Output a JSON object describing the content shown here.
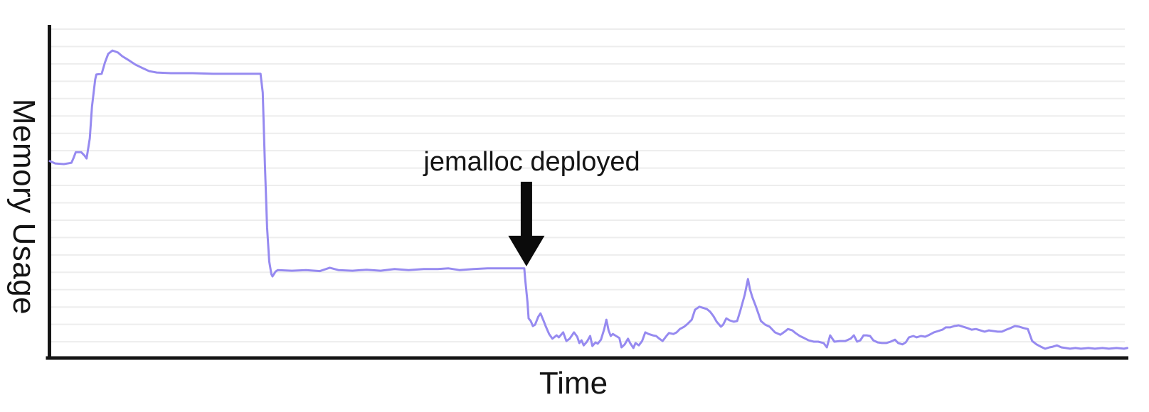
{
  "chart_data": {
    "type": "line",
    "title": "",
    "xlabel": "Time",
    "ylabel": "Memory Usage",
    "x_tick_labels": [],
    "y_tick_labels": [],
    "grid": "horizontal",
    "legend": "none",
    "axis_range_percent": {
      "x": [
        0,
        100
      ],
      "y": [
        0,
        100
      ]
    },
    "colors": {
      "line": "#968af0",
      "axis": "#151515",
      "grid": "#ededed",
      "text": "#141414",
      "annotation_arrow": "#0b0b0b",
      "background": "#ffffff"
    },
    "annotation": {
      "label": "jemalloc deployed",
      "arrow_direction": "down",
      "arrow_x_percent": 44.3,
      "arrow_top_value_percent": 52.9,
      "arrow_shaft_bottom_value_percent": 36.7,
      "arrow_tip_value_percent": 27.5,
      "label_center_x_percent": 44.8,
      "label_center_value_percent": 58.6
    },
    "series": [
      {
        "name": "Memory Usage",
        "points_percent": [
          [
            0.2,
            59.1
          ],
          [
            0.7,
            58.4
          ],
          [
            1.5,
            58.2
          ],
          [
            2.2,
            58.6
          ],
          [
            2.4,
            60.1
          ],
          [
            2.6,
            61.8
          ],
          [
            3.1,
            61.8
          ],
          [
            3.4,
            60.8
          ],
          [
            3.6,
            59.9
          ],
          [
            3.9,
            65.9
          ],
          [
            4.1,
            75.5
          ],
          [
            4.4,
            83.6
          ],
          [
            4.5,
            85.1
          ],
          [
            5.0,
            85.3
          ],
          [
            5.3,
            88.7
          ],
          [
            5.6,
            91.3
          ],
          [
            6.0,
            92.3
          ],
          [
            6.5,
            91.7
          ],
          [
            6.9,
            90.6
          ],
          [
            7.4,
            89.6
          ],
          [
            8.1,
            88.1
          ],
          [
            8.8,
            87.0
          ],
          [
            9.4,
            86.1
          ],
          [
            10.1,
            85.7
          ],
          [
            11.4,
            85.5
          ],
          [
            13.4,
            85.5
          ],
          [
            15.3,
            85.3
          ],
          [
            17.3,
            85.3
          ],
          [
            19.0,
            85.3
          ],
          [
            19.7,
            85.3
          ],
          [
            19.9,
            79.7
          ],
          [
            20.1,
            58.4
          ],
          [
            20.3,
            39.2
          ],
          [
            20.5,
            29.0
          ],
          [
            20.7,
            25.2
          ],
          [
            20.8,
            24.5
          ],
          [
            21.1,
            26.0
          ],
          [
            21.3,
            26.4
          ],
          [
            22.6,
            26.2
          ],
          [
            23.9,
            26.4
          ],
          [
            25.2,
            26.1
          ],
          [
            26.1,
            27.1
          ],
          [
            26.9,
            26.4
          ],
          [
            28.2,
            26.2
          ],
          [
            29.5,
            26.5
          ],
          [
            30.8,
            26.2
          ],
          [
            32.1,
            26.7
          ],
          [
            33.4,
            26.4
          ],
          [
            34.8,
            26.7
          ],
          [
            36.1,
            26.7
          ],
          [
            37.1,
            26.9
          ],
          [
            38.1,
            26.4
          ],
          [
            39.4,
            26.7
          ],
          [
            40.7,
            26.9
          ],
          [
            42.0,
            26.9
          ],
          [
            43.1,
            26.9
          ],
          [
            44.1,
            26.9
          ],
          [
            44.2,
            23.2
          ],
          [
            44.4,
            16.8
          ],
          [
            44.5,
            11.9
          ],
          [
            44.7,
            11.1
          ],
          [
            44.9,
            9.6
          ],
          [
            45.1,
            10.0
          ],
          [
            45.4,
            12.4
          ],
          [
            45.6,
            13.4
          ],
          [
            45.9,
            11.1
          ],
          [
            46.1,
            9.4
          ],
          [
            46.4,
            7.2
          ],
          [
            46.7,
            5.8
          ],
          [
            47.1,
            6.8
          ],
          [
            47.3,
            6.2
          ],
          [
            47.7,
            7.7
          ],
          [
            48.0,
            5.1
          ],
          [
            48.3,
            5.8
          ],
          [
            48.7,
            7.7
          ],
          [
            49.0,
            6.4
          ],
          [
            49.2,
            4.5
          ],
          [
            49.4,
            5.3
          ],
          [
            49.6,
            3.8
          ],
          [
            49.9,
            4.9
          ],
          [
            50.2,
            6.6
          ],
          [
            50.4,
            3.6
          ],
          [
            50.7,
            4.7
          ],
          [
            50.9,
            4.3
          ],
          [
            51.2,
            5.5
          ],
          [
            51.5,
            8.7
          ],
          [
            51.7,
            11.5
          ],
          [
            51.9,
            8.3
          ],
          [
            52.1,
            6.6
          ],
          [
            52.3,
            7.2
          ],
          [
            52.6,
            6.6
          ],
          [
            52.9,
            6.0
          ],
          [
            53.1,
            3.2
          ],
          [
            53.4,
            4.1
          ],
          [
            53.7,
            5.8
          ],
          [
            53.9,
            4.5
          ],
          [
            54.2,
            3.0
          ],
          [
            54.4,
            4.5
          ],
          [
            54.7,
            3.8
          ],
          [
            55.0,
            5.1
          ],
          [
            55.3,
            7.7
          ],
          [
            55.6,
            7.2
          ],
          [
            56.0,
            6.8
          ],
          [
            56.3,
            6.6
          ],
          [
            56.6,
            5.8
          ],
          [
            56.9,
            5.1
          ],
          [
            57.3,
            6.8
          ],
          [
            57.5,
            7.5
          ],
          [
            57.9,
            7.2
          ],
          [
            58.2,
            7.7
          ],
          [
            58.5,
            8.7
          ],
          [
            58.9,
            9.4
          ],
          [
            59.2,
            10.2
          ],
          [
            59.6,
            11.5
          ],
          [
            59.9,
            14.5
          ],
          [
            60.3,
            15.4
          ],
          [
            60.6,
            15.1
          ],
          [
            61.0,
            14.7
          ],
          [
            61.3,
            13.9
          ],
          [
            61.6,
            12.6
          ],
          [
            61.9,
            10.9
          ],
          [
            62.3,
            9.4
          ],
          [
            62.5,
            10.0
          ],
          [
            62.8,
            11.9
          ],
          [
            63.1,
            11.3
          ],
          [
            63.5,
            10.9
          ],
          [
            63.8,
            11.1
          ],
          [
            64.1,
            14.3
          ],
          [
            64.5,
            19.0
          ],
          [
            64.8,
            23.7
          ],
          [
            65.0,
            20.5
          ],
          [
            65.2,
            18.3
          ],
          [
            65.5,
            15.8
          ],
          [
            65.8,
            13.0
          ],
          [
            66.0,
            11.1
          ],
          [
            66.4,
            10.0
          ],
          [
            66.8,
            9.4
          ],
          [
            67.3,
            7.7
          ],
          [
            67.8,
            7.0
          ],
          [
            68.2,
            7.9
          ],
          [
            68.5,
            8.7
          ],
          [
            68.9,
            8.3
          ],
          [
            69.2,
            7.5
          ],
          [
            69.6,
            6.6
          ],
          [
            70.0,
            6.0
          ],
          [
            70.4,
            5.3
          ],
          [
            70.9,
            4.9
          ],
          [
            71.3,
            4.9
          ],
          [
            71.8,
            4.5
          ],
          [
            72.1,
            3.2
          ],
          [
            72.4,
            6.8
          ],
          [
            72.8,
            4.9
          ],
          [
            73.3,
            5.1
          ],
          [
            73.8,
            5.1
          ],
          [
            74.3,
            5.8
          ],
          [
            74.6,
            6.8
          ],
          [
            74.9,
            4.9
          ],
          [
            75.2,
            5.3
          ],
          [
            75.5,
            6.8
          ],
          [
            75.8,
            6.8
          ],
          [
            76.1,
            6.6
          ],
          [
            76.4,
            5.3
          ],
          [
            76.8,
            4.7
          ],
          [
            77.2,
            4.5
          ],
          [
            77.6,
            4.5
          ],
          [
            78.0,
            4.9
          ],
          [
            78.4,
            5.5
          ],
          [
            78.7,
            4.5
          ],
          [
            79.1,
            4.1
          ],
          [
            79.4,
            4.7
          ],
          [
            79.7,
            6.2
          ],
          [
            80.1,
            6.6
          ],
          [
            80.4,
            6.2
          ],
          [
            80.8,
            6.6
          ],
          [
            81.2,
            6.4
          ],
          [
            81.6,
            7.0
          ],
          [
            82.0,
            7.7
          ],
          [
            82.4,
            8.1
          ],
          [
            82.8,
            8.5
          ],
          [
            83.1,
            9.2
          ],
          [
            83.5,
            9.2
          ],
          [
            83.9,
            9.6
          ],
          [
            84.3,
            9.8
          ],
          [
            84.7,
            9.4
          ],
          [
            85.1,
            9.0
          ],
          [
            85.5,
            8.5
          ],
          [
            85.9,
            8.7
          ],
          [
            86.3,
            8.3
          ],
          [
            86.7,
            7.9
          ],
          [
            87.1,
            8.3
          ],
          [
            87.5,
            8.1
          ],
          [
            87.9,
            7.9
          ],
          [
            88.3,
            7.9
          ],
          [
            88.7,
            8.5
          ],
          [
            89.1,
            9.0
          ],
          [
            89.5,
            9.6
          ],
          [
            89.9,
            9.4
          ],
          [
            90.3,
            9.0
          ],
          [
            90.7,
            8.7
          ],
          [
            91.1,
            5.1
          ],
          [
            91.5,
            4.1
          ],
          [
            91.9,
            3.4
          ],
          [
            92.3,
            2.8
          ],
          [
            92.7,
            3.2
          ],
          [
            93.0,
            3.4
          ],
          [
            93.4,
            3.8
          ],
          [
            93.8,
            3.2
          ],
          [
            94.2,
            3.0
          ],
          [
            94.6,
            2.8
          ],
          [
            95.1,
            3.0
          ],
          [
            95.6,
            2.8
          ],
          [
            96.3,
            3.0
          ],
          [
            96.9,
            2.8
          ],
          [
            97.6,
            3.0
          ],
          [
            98.2,
            2.8
          ],
          [
            98.9,
            3.0
          ],
          [
            99.6,
            2.8
          ],
          [
            99.9,
            3.0
          ]
        ]
      }
    ]
  }
}
